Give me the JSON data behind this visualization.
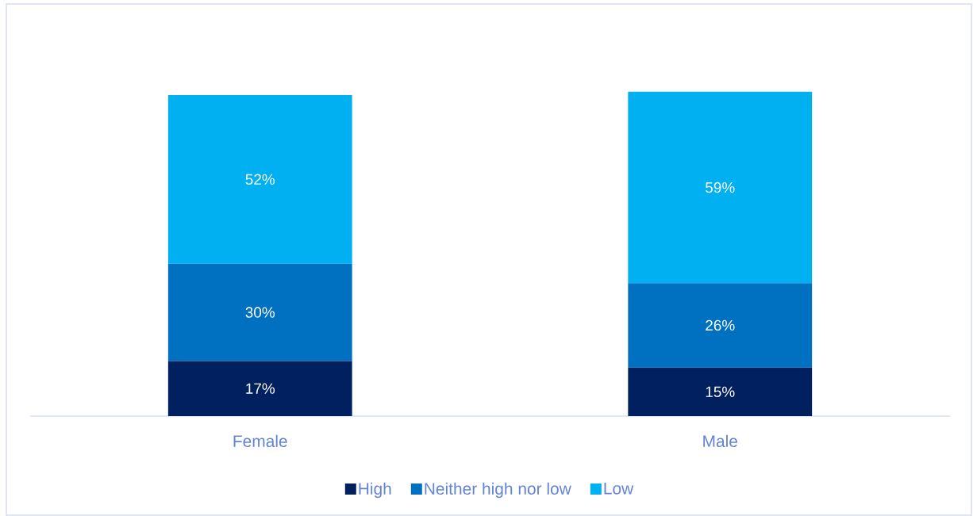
{
  "chart_data": {
    "type": "bar",
    "stacked": true,
    "categories": [
      "Female",
      "Male"
    ],
    "series": [
      {
        "name": "High",
        "color": "#002060",
        "values": [
          17,
          15
        ],
        "value_labels": [
          "17%",
          "15%"
        ]
      },
      {
        "name": "Neither high nor low",
        "color": "#0070C0",
        "values": [
          30,
          26
        ],
        "value_labels": [
          "30%",
          "26%"
        ]
      },
      {
        "name": "Low",
        "color": "#00B0F0",
        "values": [
          52,
          59
        ],
        "value_labels": [
          "52%",
          "59%"
        ]
      }
    ],
    "legend": "bottom"
  }
}
